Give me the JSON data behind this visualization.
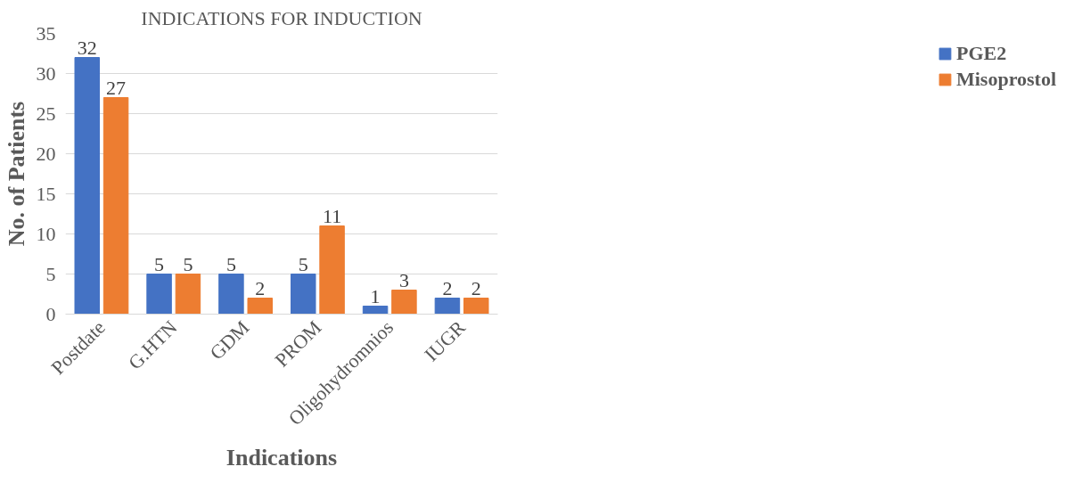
{
  "chart_data": {
    "type": "bar",
    "title": "INDICATIONS FOR INDUCTION",
    "xlabel": "Indications",
    "ylabel": "No. of Patients",
    "categories": [
      "Postdate",
      "G.HTN",
      "GDM",
      "PROM",
      "Oligohydromnios",
      "IUGR"
    ],
    "series": [
      {
        "name": "PGE2",
        "color": "#4472c4",
        "values": [
          32,
          5,
          5,
          5,
          1,
          2
        ]
      },
      {
        "name": "Misoprostol",
        "color": "#ed7d31",
        "values": [
          27,
          5,
          2,
          11,
          3,
          2
        ]
      }
    ],
    "ylim": [
      0,
      35
    ],
    "yticks": [
      0,
      5,
      10,
      15,
      20,
      25,
      30,
      35
    ],
    "grid": "y",
    "legend": "right",
    "data_labels": true
  }
}
